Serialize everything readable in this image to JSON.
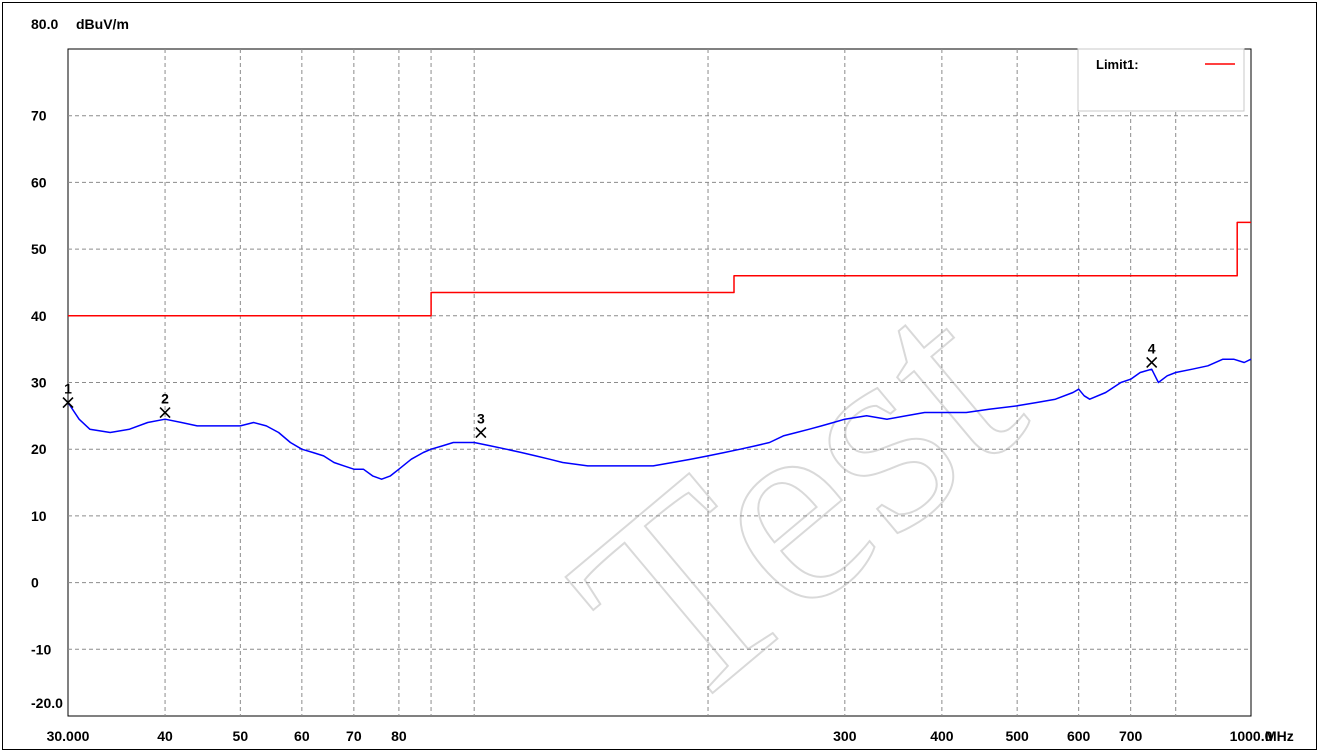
{
  "chart_data": {
    "type": "line",
    "xscale": "log",
    "xlim": [
      30,
      1000
    ],
    "ylim": [
      -20,
      80
    ],
    "grid": true,
    "legend_position": "top-right",
    "y_unit_label": "dBuV/m",
    "x_unit_label": "MHz",
    "y_ticks": [
      {
        "value": 80,
        "label": "80.0"
      },
      {
        "value": 70,
        "label": "70"
      },
      {
        "value": 60,
        "label": "60"
      },
      {
        "value": 50,
        "label": "50"
      },
      {
        "value": 40,
        "label": "40"
      },
      {
        "value": 30,
        "label": "30"
      },
      {
        "value": 20,
        "label": "20"
      },
      {
        "value": 10,
        "label": "10"
      },
      {
        "value": 0,
        "label": "0"
      },
      {
        "value": -10,
        "label": "-10"
      },
      {
        "value": -20,
        "label": "-20.0"
      }
    ],
    "x_ticks": [
      {
        "value": 30,
        "label": "30.000"
      },
      {
        "value": 40,
        "label": "40"
      },
      {
        "value": 50,
        "label": "50"
      },
      {
        "value": 60,
        "label": "60"
      },
      {
        "value": 70,
        "label": "70"
      },
      {
        "value": 80,
        "label": "80"
      },
      {
        "value": 300,
        "label": "300"
      },
      {
        "value": 400,
        "label": "400"
      },
      {
        "value": 500,
        "label": "500"
      },
      {
        "value": 600,
        "label": "600"
      },
      {
        "value": 700,
        "label": "700"
      },
      {
        "value": 1000,
        "label": "1000.0"
      }
    ],
    "x_gridlines": [
      30,
      40,
      50,
      60,
      70,
      80,
      88,
      100,
      200,
      300,
      400,
      500,
      600,
      700,
      800,
      1000
    ],
    "series": [
      {
        "name": "Limit1:",
        "color": "#ff0000",
        "step": true,
        "points": [
          [
            30,
            40
          ],
          [
            88,
            40
          ],
          [
            88,
            43.5
          ],
          [
            216,
            43.5
          ],
          [
            216,
            46
          ],
          [
            960,
            46
          ],
          [
            960,
            54
          ],
          [
            1000,
            54
          ]
        ]
      },
      {
        "color": "#0000ff",
        "points": [
          [
            30,
            27
          ],
          [
            31,
            24.5
          ],
          [
            32,
            23
          ],
          [
            34,
            22.5
          ],
          [
            36,
            23
          ],
          [
            38,
            24
          ],
          [
            40,
            24.5
          ],
          [
            42,
            24
          ],
          [
            44,
            23.5
          ],
          [
            46,
            23.5
          ],
          [
            48,
            23.5
          ],
          [
            50,
            23.5
          ],
          [
            52,
            24
          ],
          [
            54,
            23.5
          ],
          [
            56,
            22.5
          ],
          [
            58,
            21
          ],
          [
            60,
            20
          ],
          [
            62,
            19.5
          ],
          [
            64,
            19
          ],
          [
            66,
            18
          ],
          [
            68,
            17.5
          ],
          [
            70,
            17
          ],
          [
            72,
            17
          ],
          [
            74,
            16
          ],
          [
            76,
            15.5
          ],
          [
            78,
            16
          ],
          [
            80,
            17
          ],
          [
            83,
            18.5
          ],
          [
            86,
            19.5
          ],
          [
            88,
            20
          ],
          [
            91,
            20.5
          ],
          [
            94,
            21
          ],
          [
            97,
            21
          ],
          [
            100,
            21
          ],
          [
            105,
            20.5
          ],
          [
            110,
            20
          ],
          [
            115,
            19.5
          ],
          [
            120,
            19
          ],
          [
            125,
            18.5
          ],
          [
            130,
            18
          ],
          [
            140,
            17.5
          ],
          [
            150,
            17.5
          ],
          [
            160,
            17.5
          ],
          [
            170,
            17.5
          ],
          [
            180,
            18
          ],
          [
            190,
            18.5
          ],
          [
            200,
            19
          ],
          [
            210,
            19.5
          ],
          [
            220,
            20
          ],
          [
            230,
            20.5
          ],
          [
            240,
            21
          ],
          [
            250,
            22
          ],
          [
            260,
            22.5
          ],
          [
            270,
            23
          ],
          [
            280,
            23.5
          ],
          [
            290,
            24
          ],
          [
            300,
            24.5
          ],
          [
            320,
            25
          ],
          [
            340,
            24.5
          ],
          [
            360,
            25
          ],
          [
            380,
            25.5
          ],
          [
            400,
            25.5
          ],
          [
            430,
            25.5
          ],
          [
            460,
            26
          ],
          [
            500,
            26.5
          ],
          [
            530,
            27
          ],
          [
            560,
            27.5
          ],
          [
            590,
            28.5
          ],
          [
            600,
            29
          ],
          [
            610,
            28
          ],
          [
            620,
            27.5
          ],
          [
            650,
            28.5
          ],
          [
            680,
            30
          ],
          [
            700,
            30.5
          ],
          [
            720,
            31.5
          ],
          [
            745,
            32
          ],
          [
            760,
            30
          ],
          [
            780,
            31
          ],
          [
            800,
            31.5
          ],
          [
            840,
            32
          ],
          [
            880,
            32.5
          ],
          [
            920,
            33.5
          ],
          [
            950,
            33.5
          ],
          [
            980,
            33
          ],
          [
            1000,
            33.5
          ]
        ]
      }
    ],
    "markers": [
      {
        "label": "1",
        "x": 30,
        "y": 27
      },
      {
        "label": "2",
        "x": 40,
        "y": 25.5
      },
      {
        "label": "3",
        "x": 102,
        "y": 22.5
      },
      {
        "label": "4",
        "x": 745,
        "y": 33
      }
    ],
    "watermark": "Test"
  }
}
